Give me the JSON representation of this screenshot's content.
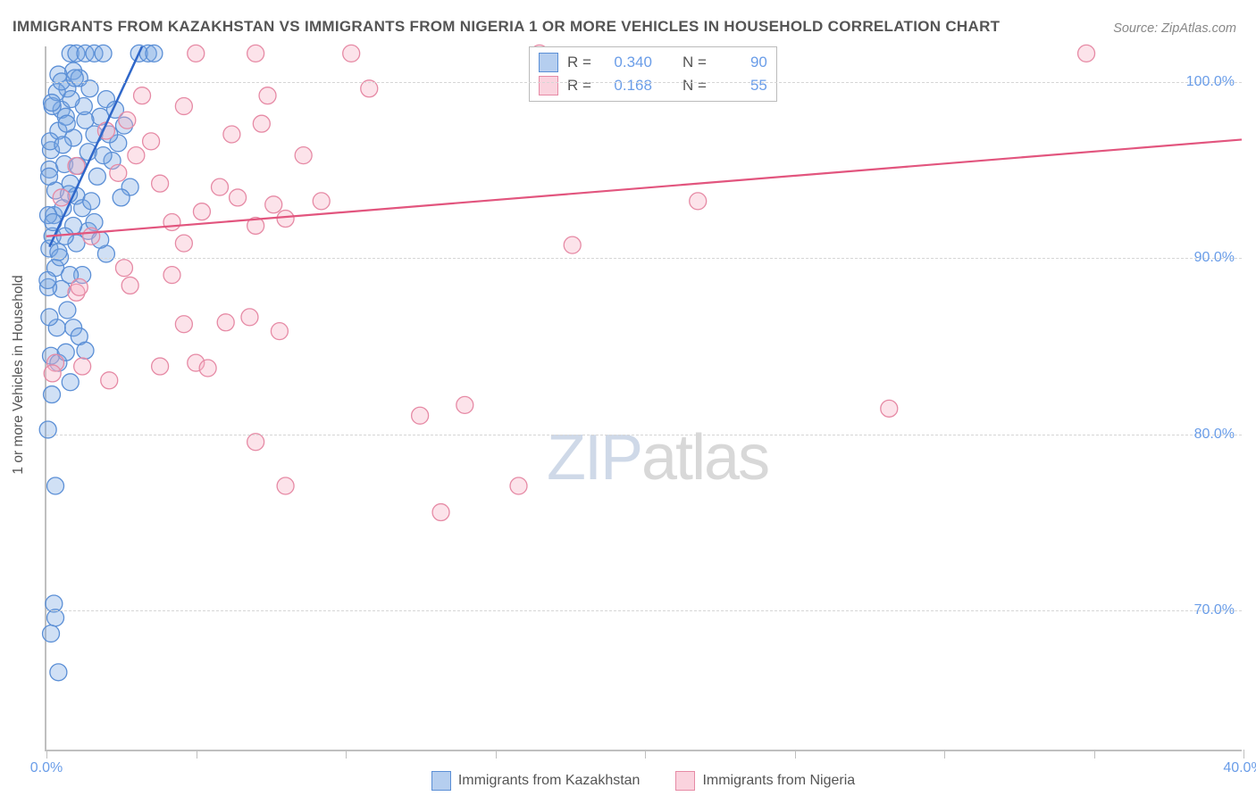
{
  "title": "IMMIGRANTS FROM KAZAKHSTAN VS IMMIGRANTS FROM NIGERIA 1 OR MORE VEHICLES IN HOUSEHOLD CORRELATION CHART",
  "source": "Source: ZipAtlas.com",
  "watermark_zip": "ZIP",
  "watermark_atlas": "atlas",
  "y_axis_title": "1 or more Vehicles in Household",
  "chart": {
    "type": "scatter",
    "xlim": [
      0,
      40
    ],
    "ylim": [
      62,
      102
    ],
    "x_ticks": [
      0,
      5,
      10,
      15,
      20,
      25,
      30,
      35,
      40
    ],
    "x_labels_shown": {
      "0": "0.0%",
      "40": "40.0%"
    },
    "y_gridlines": [
      70,
      80,
      90,
      100
    ],
    "y_labels": {
      "70": "70.0%",
      "80": "80.0%",
      "90": "90.0%",
      "100": "100.0%"
    },
    "background_color": "#ffffff",
    "grid_color": "#d6d6d6",
    "axis_color": "#bfbfbf",
    "tick_label_color": "#6a9de8",
    "tick_fontsize": 16,
    "point_radius": 9.5
  },
  "series": [
    {
      "name": "Immigrants from Kazakhstan",
      "color_fill": "rgba(120,165,225,0.35)",
      "color_stroke": "#5b8fd6",
      "trend_color": "#2f67c9",
      "swatch_class": "sw-blue",
      "point_class": "pt-blue",
      "R": "0.340",
      "N": "90",
      "trend": {
        "x1": 0.1,
        "y1": 90.6,
        "x2": 3.2,
        "y2": 102
      },
      "points": [
        [
          0.1,
          90.5
        ],
        [
          0.2,
          91.2
        ],
        [
          0.25,
          92.4
        ],
        [
          0.3,
          93.8
        ],
        [
          0.1,
          95.0
        ],
        [
          0.15,
          96.1
        ],
        [
          0.8,
          101.6
        ],
        [
          1.0,
          101.6
        ],
        [
          1.3,
          101.6
        ],
        [
          1.6,
          101.6
        ],
        [
          1.9,
          101.6
        ],
        [
          3.1,
          101.6
        ],
        [
          3.4,
          101.6
        ],
        [
          3.6,
          101.6
        ],
        [
          0.4,
          97.2
        ],
        [
          0.5,
          98.4
        ],
        [
          0.7,
          99.6
        ],
        [
          0.9,
          100.6
        ],
        [
          1.1,
          100.2
        ],
        [
          0.4,
          100.4
        ],
        [
          0.6,
          95.3
        ],
        [
          0.8,
          94.2
        ],
        [
          1.0,
          93.5
        ],
        [
          1.2,
          92.8
        ],
        [
          1.4,
          96.0
        ],
        [
          1.6,
          97.0
        ],
        [
          1.8,
          98.0
        ],
        [
          2.0,
          99.0
        ],
        [
          2.2,
          95.5
        ],
        [
          2.4,
          96.5
        ],
        [
          2.6,
          97.5
        ],
        [
          2.8,
          94.0
        ],
        [
          0.3,
          89.4
        ],
        [
          0.5,
          88.2
        ],
        [
          0.7,
          87.0
        ],
        [
          0.9,
          86.0
        ],
        [
          1.1,
          85.5
        ],
        [
          1.3,
          84.7
        ],
        [
          0.15,
          84.4
        ],
        [
          1.0,
          90.8
        ],
        [
          1.4,
          91.5
        ],
        [
          1.2,
          89.0
        ],
        [
          0.55,
          92.8
        ],
        [
          0.75,
          93.6
        ],
        [
          0.9,
          91.8
        ],
        [
          1.3,
          97.8
        ],
        [
          1.5,
          93.2
        ],
        [
          1.7,
          94.6
        ],
        [
          1.9,
          95.8
        ],
        [
          2.0,
          90.2
        ],
        [
          0.05,
          80.2
        ],
        [
          0.8,
          82.9
        ],
        [
          0.4,
          84.0
        ],
        [
          0.3,
          77.0
        ],
        [
          0.25,
          70.3
        ],
        [
          0.3,
          69.5
        ],
        [
          0.15,
          68.6
        ],
        [
          0.4,
          66.4
        ],
        [
          0.2,
          98.6
        ],
        [
          0.35,
          99.4
        ],
        [
          0.5,
          100.0
        ],
        [
          0.65,
          98.0
        ],
        [
          0.9,
          96.8
        ],
        [
          1.05,
          95.2
        ],
        [
          1.25,
          98.6
        ],
        [
          1.45,
          99.6
        ],
        [
          1.6,
          92.0
        ],
        [
          1.8,
          91.0
        ],
        [
          0.06,
          92.4
        ],
        [
          0.09,
          94.6
        ],
        [
          0.12,
          96.6
        ],
        [
          0.18,
          98.8
        ],
        [
          0.55,
          96.4
        ],
        [
          0.68,
          97.6
        ],
        [
          0.82,
          99.0
        ],
        [
          0.95,
          100.2
        ],
        [
          2.1,
          97.0
        ],
        [
          2.3,
          98.4
        ],
        [
          2.5,
          93.4
        ],
        [
          0.45,
          90.0
        ],
        [
          0.62,
          91.2
        ],
        [
          0.78,
          89.0
        ],
        [
          0.35,
          86.0
        ],
        [
          0.65,
          84.6
        ],
        [
          0.06,
          88.3
        ],
        [
          0.1,
          86.6
        ],
        [
          0.18,
          82.2
        ],
        [
          0.22,
          92.0
        ],
        [
          0.04,
          88.7
        ],
        [
          0.4,
          90.3
        ]
      ]
    },
    {
      "name": "Immigrants from Nigeria",
      "color_fill": "rgba(245,175,195,0.35)",
      "color_stroke": "#e68aa5",
      "trend_color": "#e2557e",
      "swatch_class": "sw-pink",
      "point_class": "pt-pink",
      "R": "0.168",
      "N": "55",
      "trend": {
        "x1": 0,
        "y1": 91.2,
        "x2": 40,
        "y2": 96.7
      },
      "points": [
        [
          0.3,
          84.0
        ],
        [
          2.1,
          83.0
        ],
        [
          1.0,
          88.0
        ],
        [
          2.8,
          88.4
        ],
        [
          3.8,
          83.8
        ],
        [
          5.0,
          84.0
        ],
        [
          5.4,
          83.7
        ],
        [
          4.6,
          86.2
        ],
        [
          4.2,
          89.0
        ],
        [
          6.0,
          86.3
        ],
        [
          6.8,
          86.6
        ],
        [
          7.8,
          85.8
        ],
        [
          4.2,
          92.0
        ],
        [
          4.6,
          90.8
        ],
        [
          5.2,
          92.6
        ],
        [
          5.8,
          94.0
        ],
        [
          6.2,
          97.0
        ],
        [
          6.4,
          93.4
        ],
        [
          7.0,
          91.8
        ],
        [
          7.2,
          97.6
        ],
        [
          7.6,
          93.0
        ],
        [
          8.0,
          92.2
        ],
        [
          8.6,
          95.8
        ],
        [
          9.2,
          93.2
        ],
        [
          3.0,
          95.8
        ],
        [
          3.2,
          99.2
        ],
        [
          3.5,
          96.6
        ],
        [
          3.8,
          94.2
        ],
        [
          4.6,
          98.6
        ],
        [
          5.0,
          101.6
        ],
        [
          7.0,
          101.6
        ],
        [
          7.4,
          99.2
        ],
        [
          10.2,
          101.6
        ],
        [
          10.8,
          99.6
        ],
        [
          8.0,
          77.0
        ],
        [
          7.0,
          79.5
        ],
        [
          12.5,
          81.0
        ],
        [
          15.8,
          77.0
        ],
        [
          16.5,
          101.6
        ],
        [
          17.6,
          90.7
        ],
        [
          14.0,
          81.6
        ],
        [
          13.2,
          75.5
        ],
        [
          21.8,
          93.2
        ],
        [
          28.2,
          81.4
        ],
        [
          34.8,
          101.6
        ],
        [
          0.5,
          93.4
        ],
        [
          1.0,
          95.2
        ],
        [
          1.5,
          91.2
        ],
        [
          2.0,
          97.2
        ],
        [
          2.4,
          94.8
        ],
        [
          2.6,
          89.4
        ],
        [
          2.7,
          97.8
        ],
        [
          1.2,
          83.8
        ],
        [
          1.1,
          88.3
        ],
        [
          0.2,
          83.4
        ]
      ]
    }
  ],
  "stats_box": {
    "R_label": "R =",
    "N_label": "N ="
  },
  "legend": {
    "item1": "Immigrants from Kazakhstan",
    "item2": "Immigrants from Nigeria"
  }
}
